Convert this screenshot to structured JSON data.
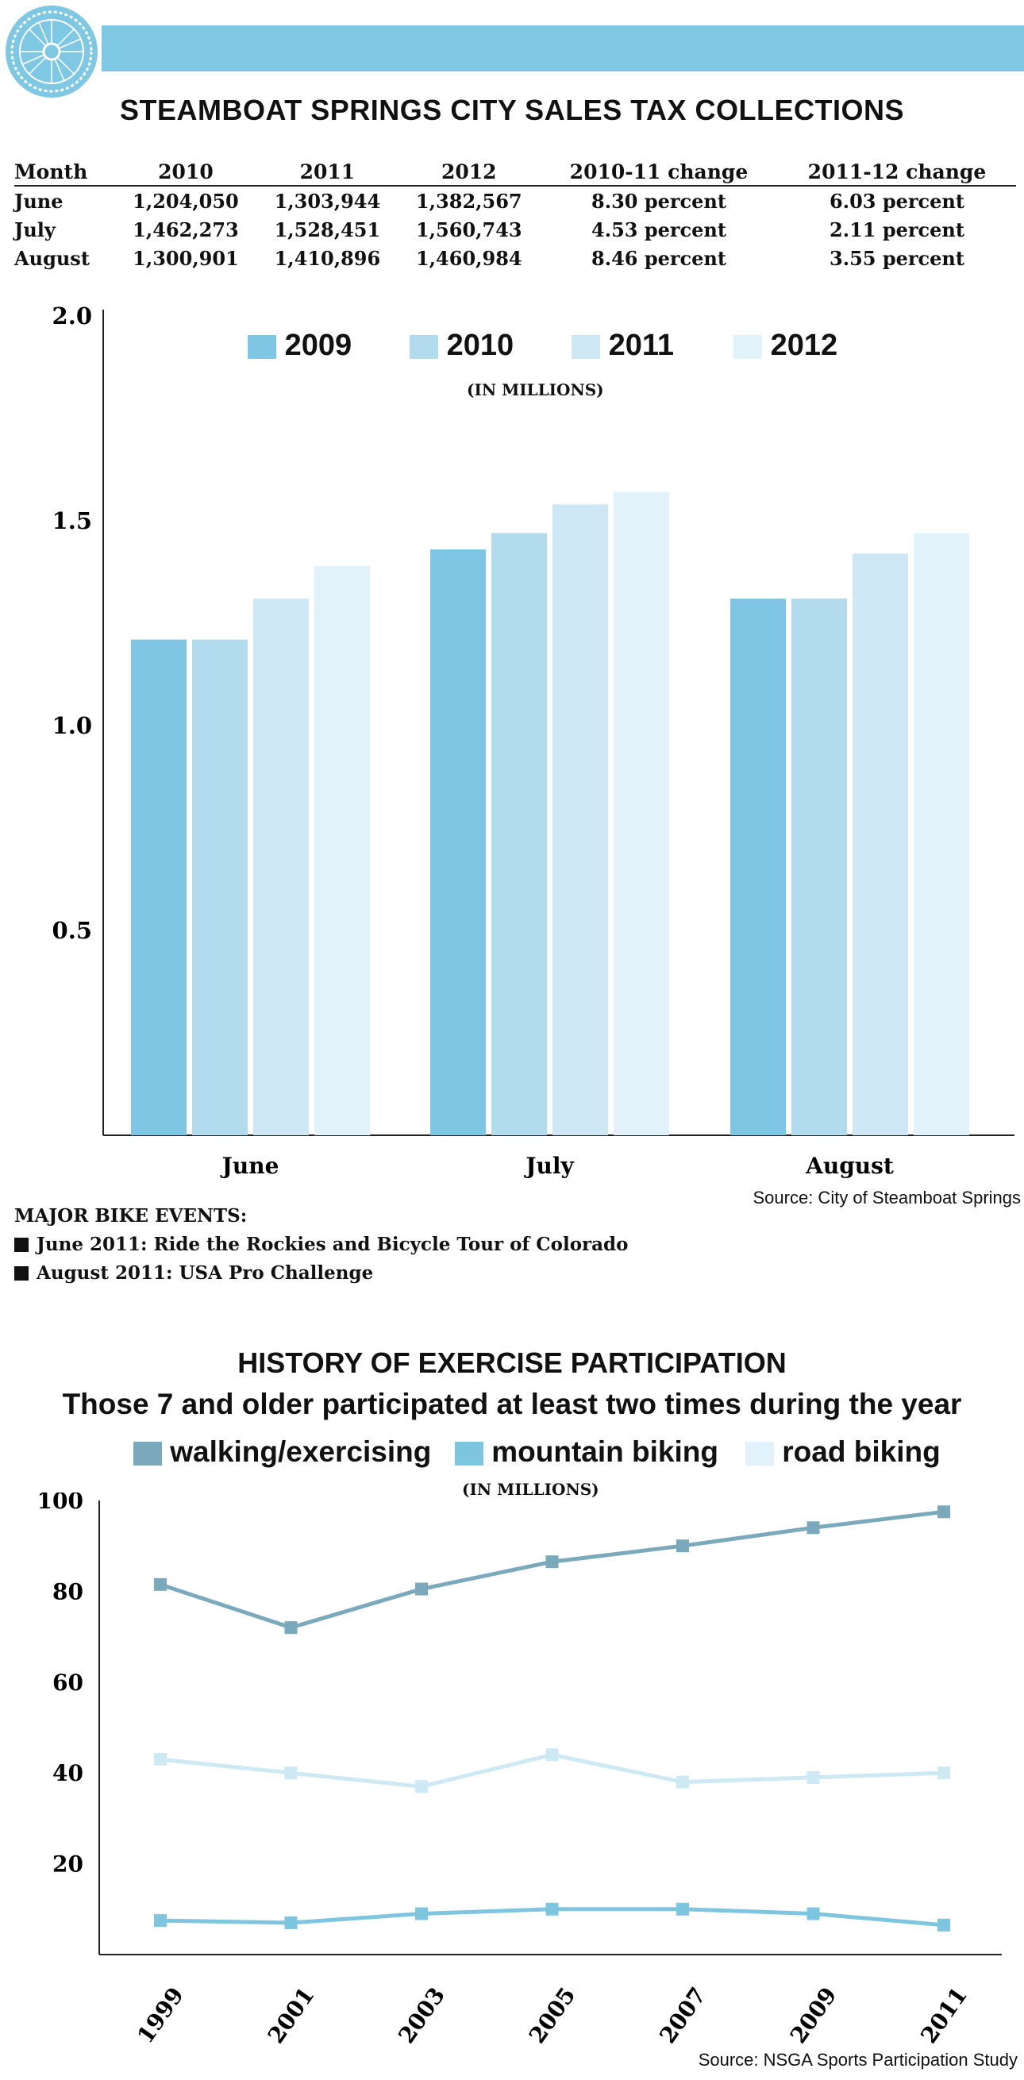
{
  "header": {
    "title": "STEAMBOAT SPRINGS CITY SALES TAX COLLECTIONS"
  },
  "table": {
    "headers": [
      "Month",
      "2010",
      "2011",
      "2012",
      "2010-11 change",
      "2011-12 change"
    ],
    "rows": [
      [
        "June",
        "1,204,050",
        "1,303,944",
        "1,382,567",
        "8.30 percent",
        "6.03 percent"
      ],
      [
        "July",
        "1,462,273",
        "1,528,451",
        "1,560,743",
        "4.53 percent",
        "2.11 percent"
      ],
      [
        "August",
        "1,300,901",
        "1,410,896",
        "1,460,984",
        "8.46 percent",
        "3.55 percent"
      ]
    ]
  },
  "chart1_unit": "(IN MILLIONS)",
  "chart1_source": "Source: City of Steamboat Springs",
  "events": {
    "heading": "MAJOR BIKE EVENTS:",
    "items": [
      "June 2011: Ride the Rockies and Bicycle Tour of Colorado",
      "August 2011: USA Pro Challenge"
    ]
  },
  "chart2_title": "HISTORY OF EXERCISE PARTICIPATION",
  "chart2_subtitle": "Those 7 and older participated at least two times during the year",
  "chart2_unit": "(IN MILLIONS)",
  "chart2_source": "Source: NSGA Sports Participation Study",
  "chart_data": [
    {
      "type": "bar",
      "categories": [
        "June",
        "July",
        "August"
      ],
      "series": [
        {
          "name": "2009",
          "color": "#7ec6e4",
          "values": [
            1.21,
            1.43,
            1.31
          ]
        },
        {
          "name": "2010",
          "color": "#b2dcee",
          "values": [
            1.21,
            1.47,
            1.31
          ]
        },
        {
          "name": "2011",
          "color": "#cde8f4",
          "values": [
            1.31,
            1.54,
            1.42
          ]
        },
        {
          "name": "2012",
          "color": "#e2f2fa",
          "values": [
            1.39,
            1.57,
            1.47
          ]
        }
      ],
      "ylim": [
        0,
        2.0
      ],
      "yticks": [
        "2.0",
        "1.5",
        "1.0",
        "0.5"
      ],
      "legend_position": "top",
      "grid": false
    },
    {
      "type": "line",
      "x": [
        "1999",
        "2001",
        "2003",
        "2005",
        "2007",
        "2009",
        "2011"
      ],
      "series": [
        {
          "name": "walking/exercising",
          "color": "#7aa9bc",
          "values": [
            81.5,
            72,
            80.5,
            86.5,
            90,
            94,
            97.5
          ]
        },
        {
          "name": "mountain biking",
          "color": "#7ec6e0",
          "values": [
            7.5,
            7,
            9,
            10,
            10,
            9,
            6.5
          ]
        },
        {
          "name": "road biking",
          "color": "#cde9f4",
          "values": [
            43,
            40,
            37,
            44,
            38,
            39,
            40
          ]
        }
      ],
      "ylim": [
        0,
        100
      ],
      "yticks": [
        "100",
        "80",
        "60",
        "40",
        "20"
      ],
      "legend_position": "top",
      "grid": false
    }
  ]
}
